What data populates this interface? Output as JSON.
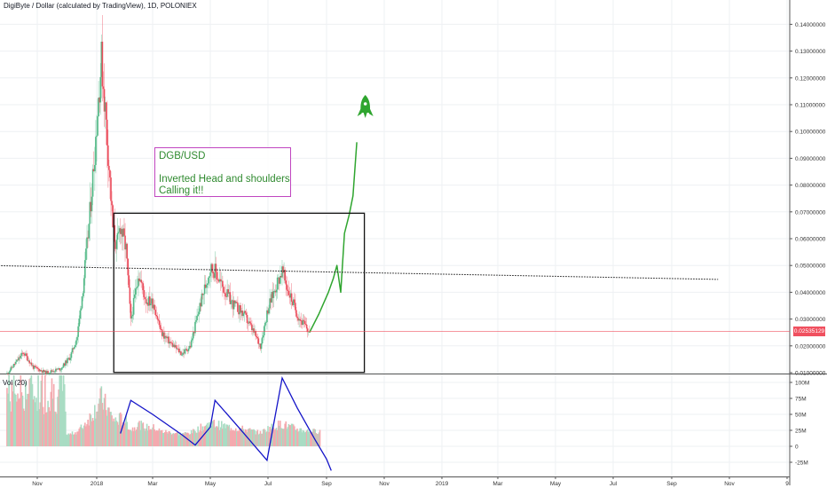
{
  "header": {
    "title": "DigiByte / Dollar (calculated by TradingView), 1D, POLONIEX"
  },
  "volume_panel": {
    "label": "Vol (20)"
  },
  "annotation": {
    "lines": [
      "DGB/USD",
      "",
      "Inverted Head and shoulders",
      "Calling it!!"
    ]
  },
  "last_price_tag": "0.02535129",
  "colors": {
    "up": "#53b987",
    "down": "#eb4d5c",
    "projection": "#2fa52f",
    "volume_ma": "#1414c8",
    "note_border": "#c046c0",
    "price_line": "#f0505f"
  },
  "icons": {
    "rocket": "rocket-icon"
  },
  "chart_data": [
    {
      "type": "line",
      "title": "DigiByte / Dollar (calculated by TradingView), 1D, POLONIEX",
      "xlabel": "",
      "ylabel": "",
      "x_ticks": [
        "Nov",
        "2018",
        "Mar",
        "May",
        "Jul",
        "Sep",
        "Nov",
        "2019",
        "Mar",
        "May",
        "Jul",
        "Sep",
        "Nov",
        "9"
      ],
      "y_ticks": [
        "0.01000000",
        "0.02000000",
        "0.03000000",
        "0.04000000",
        "0.05000000",
        "0.06000000",
        "0.07000000",
        "0.08000000",
        "0.09000000",
        "0.10000000",
        "0.11000000",
        "0.12000000",
        "0.13000000",
        "0.14000000"
      ],
      "ylim": [
        0.01,
        0.143
      ],
      "last_price": 0.02535129,
      "series": [
        {
          "values": [
            [
              "2017-10-05",
              0.0115
            ],
            [
              "2017-10-18",
              0.0175
            ],
            [
              "2017-10-28",
              0.012
            ],
            [
              "2017-11-10",
              0.01
            ],
            [
              "2017-11-25",
              0.0115
            ],
            [
              "2017-12-05",
              0.016
            ],
            [
              "2017-12-12",
              0.0235
            ],
            [
              "2017-12-18",
              0.042
            ],
            [
              "2017-12-24",
              0.065
            ],
            [
              "2017-12-29",
              0.088
            ],
            [
              "2018-01-03",
              0.113
            ],
            [
              "2018-01-06",
              0.127
            ],
            [
              "2018-01-10",
              0.108
            ],
            [
              "2018-01-14",
              0.087
            ],
            [
              "2018-01-18",
              0.064
            ],
            [
              "2018-01-22",
              0.057
            ],
            [
              "2018-01-26",
              0.065
            ],
            [
              "2018-02-01",
              0.056
            ],
            [
              "2018-02-06",
              0.029
            ],
            [
              "2018-02-14",
              0.047
            ],
            [
              "2018-02-22",
              0.037
            ],
            [
              "2018-03-02",
              0.036
            ],
            [
              "2018-03-10",
              0.025
            ],
            [
              "2018-03-20",
              0.021
            ],
            [
              "2018-04-01",
              0.017
            ],
            [
              "2018-04-10",
              0.02
            ],
            [
              "2018-04-20",
              0.035
            ],
            [
              "2018-05-01",
              0.049
            ],
            [
              "2018-05-06",
              0.048
            ],
            [
              "2018-05-14",
              0.042
            ],
            [
              "2018-05-24",
              0.036
            ],
            [
              "2018-06-05",
              0.032
            ],
            [
              "2018-06-16",
              0.025
            ],
            [
              "2018-06-23",
              0.02
            ],
            [
              "2018-07-01",
              0.034
            ],
            [
              "2018-07-10",
              0.043
            ],
            [
              "2018-07-16",
              0.048
            ],
            [
              "2018-07-22",
              0.041
            ],
            [
              "2018-08-02",
              0.031
            ],
            [
              "2018-08-14",
              0.025
            ]
          ]
        },
        {
          "name": "",
          "values": [
            [
              "2018-08-14",
              0.025
            ],
            [
              "2018-08-24",
              0.032
            ],
            [
              "2018-09-03",
              0.04
            ],
            [
              "2018-09-08",
              0.045
            ],
            [
              "2018-09-12",
              0.05
            ],
            [
              "2018-09-16",
              0.04
            ],
            [
              "2018-09-20",
              0.062
            ],
            [
              "2018-09-25",
              0.069
            ],
            [
              "2018-09-29",
              0.076
            ],
            [
              "2018-10-03",
              0.096
            ]
          ]
        }
      ],
      "box": {
        "x": [
          "2018-01-19",
          "2018-10-11"
        ],
        "y": [
          0.0101,
          0.0695
        ]
      },
      "dotted_trendline": {
        "x": [
          "2017-09-25",
          "2019-10-20"
        ],
        "y": [
          0.0499,
          0.0448
        ]
      }
    },
    {
      "type": "bar",
      "title": "Vol (20)",
      "y_ticks": [
        "100M",
        "75M",
        "50M",
        "25M",
        "0",
        "-25M"
      ],
      "ylim": [
        -40,
        105
      ],
      "series": [
        {
          "name": "",
          "values": [
            [
              "2018-01-26",
              20
            ],
            [
              "2018-02-06",
              72
            ],
            [
              "2018-03-01",
              50
            ],
            [
              "2018-04-01",
              18
            ],
            [
              "2018-04-15",
              2
            ],
            [
              "2018-05-01",
              30
            ],
            [
              "2018-05-06",
              72
            ],
            [
              "2018-06-01",
              28
            ],
            [
              "2018-06-30",
              -22
            ],
            [
              "2018-07-16",
              107
            ],
            [
              "2018-08-01",
              60
            ],
            [
              "2018-08-20",
              10
            ],
            [
              "2018-09-01",
              -20
            ],
            [
              "2018-09-06",
              -38
            ]
          ]
        }
      ]
    }
  ]
}
